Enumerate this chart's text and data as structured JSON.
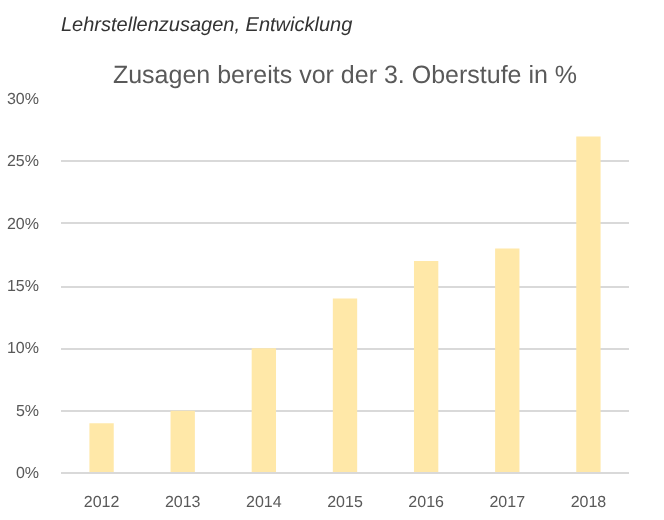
{
  "chart_data": {
    "type": "bar",
    "title": "Zusagen bereits vor der 3. Oberstufe in %",
    "annotations": [
      "Lehrstellenzusagen, Entwicklung"
    ],
    "categories": [
      "2012",
      "2013",
      "2014",
      "2015",
      "2016",
      "2017",
      "2018"
    ],
    "values": [
      4,
      5,
      10,
      14,
      17,
      18,
      27
    ],
    "color": "#ffe8a8",
    "ylim": [
      0,
      30
    ],
    "yticks": [
      {
        "value": 0,
        "label": "0%"
      },
      {
        "value": 5,
        "label": "5%"
      },
      {
        "value": 10,
        "label": "10%"
      },
      {
        "value": 15,
        "label": "15%"
      },
      {
        "value": 20,
        "label": "20%"
      },
      {
        "value": 25,
        "label": "25%"
      },
      {
        "value": 30,
        "label": "30%"
      }
    ],
    "grid": "y"
  }
}
